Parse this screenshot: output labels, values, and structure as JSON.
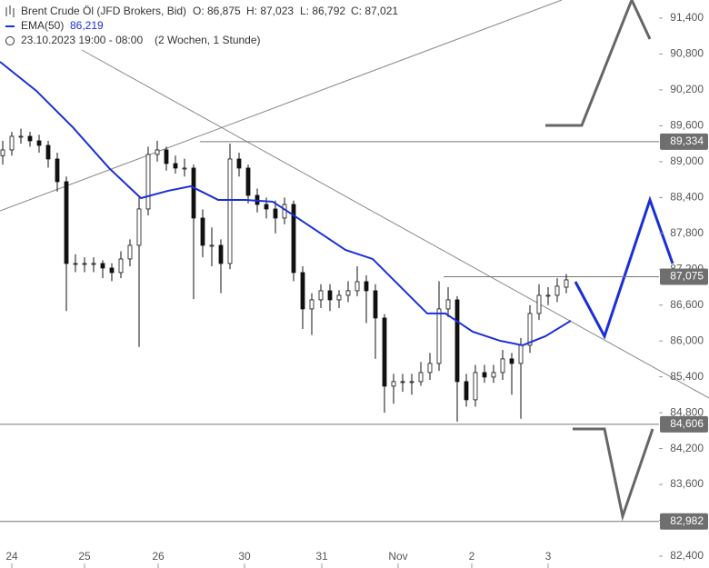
{
  "chart_data": {
    "type": "candlestick",
    "header": {
      "title": "Brent Crude Öl (JFD Brokers, Bid)",
      "open": "O: 86,875",
      "high": "H: 87,023",
      "low": "L: 86,792",
      "close": "C: 87,021",
      "indicator": "EMA(50)",
      "indicator_value": "86,219",
      "period": "23.10.2023 19:00 - 08:00",
      "range": "(2 Wochen, 1 Stunde)"
    },
    "ylim": [
      82202,
      91704
    ],
    "yticks": [
      {
        "value": 91400,
        "label": "91,400"
      },
      {
        "value": 90800,
        "label": "90,800"
      },
      {
        "value": 90200,
        "label": "90,200"
      },
      {
        "value": 89600,
        "label": "89,600"
      },
      {
        "value": 89000,
        "label": "89,000"
      },
      {
        "value": 88400,
        "label": "88,400"
      },
      {
        "value": 87800,
        "label": "87,800"
      },
      {
        "value": 87200,
        "label": "87,200"
      },
      {
        "value": 86600,
        "label": "86,600"
      },
      {
        "value": 86000,
        "label": "86,000"
      },
      {
        "value": 85400,
        "label": "85,400"
      },
      {
        "value": 84800,
        "label": "84,800"
      },
      {
        "value": 84200,
        "label": "84,200"
      },
      {
        "value": 83600,
        "label": "83,600"
      },
      {
        "value": 83000,
        "label": "83,000"
      },
      {
        "value": 82400,
        "label": "82,400"
      }
    ],
    "xlim": [
      -0.3,
      72.2
    ],
    "xticks": [
      {
        "value": 1.0,
        "label": "24"
      },
      {
        "value": 9.0,
        "label": "25"
      },
      {
        "value": 17.1,
        "label": "26"
      },
      {
        "value": 26.6,
        "label": "30"
      },
      {
        "value": 35.1,
        "label": "31"
      },
      {
        "value": 43.5,
        "label": "Nov"
      },
      {
        "value": 51.6,
        "label": "2"
      },
      {
        "value": 60.0,
        "label": "3"
      }
    ],
    "levels": [
      {
        "value": 89334,
        "label": "89,334"
      },
      {
        "value": 87075,
        "label": "87,075"
      },
      {
        "value": 84606,
        "label": "84,606"
      },
      {
        "value": 82982,
        "label": "82,982"
      }
    ],
    "candles": [
      [
        89100,
        89350,
        88950,
        89196
      ],
      [
        89196,
        89500,
        89100,
        89424
      ],
      [
        89424,
        89550,
        89300,
        89424
      ],
      [
        89424,
        89500,
        89250,
        89348
      ],
      [
        89348,
        89450,
        89150,
        89272
      ],
      [
        89272,
        89350,
        88900,
        89044
      ],
      [
        89044,
        89150,
        88500,
        88664
      ],
      [
        88664,
        88750,
        86500,
        87296
      ],
      [
        87296,
        87450,
        87150,
        87296
      ],
      [
        87296,
        87400,
        87150,
        87296
      ],
      [
        87296,
        87400,
        87150,
        87296
      ],
      [
        87296,
        87350,
        87050,
        87220
      ],
      [
        87220,
        87300,
        87000,
        87144
      ],
      [
        87144,
        87500,
        87050,
        87372
      ],
      [
        87372,
        87700,
        87250,
        87600
      ],
      [
        87600,
        88400,
        85900,
        88208
      ],
      [
        88208,
        89250,
        88100,
        89120
      ],
      [
        89120,
        89350,
        89000,
        89196
      ],
      [
        89196,
        89250,
        88850,
        88968
      ],
      [
        88968,
        89100,
        88800,
        88892
      ],
      [
        88892,
        89050,
        88750,
        88892
      ],
      [
        88892,
        88950,
        86700,
        88056
      ],
      [
        88056,
        88200,
        87400,
        87600
      ],
      [
        87600,
        87900,
        87250,
        87600
      ],
      [
        87600,
        87700,
        86800,
        87296
      ],
      [
        87296,
        89300,
        87200,
        89044
      ],
      [
        89044,
        89150,
        88750,
        88892
      ],
      [
        88892,
        88950,
        88300,
        88436
      ],
      [
        88436,
        88550,
        88150,
        88284
      ],
      [
        88284,
        88400,
        88050,
        88208
      ],
      [
        88208,
        88350,
        87800,
        88056
      ],
      [
        88056,
        88400,
        87950,
        88284
      ],
      [
        88284,
        88350,
        87000,
        87144
      ],
      [
        87144,
        87250,
        86200,
        86536
      ],
      [
        86536,
        86800,
        86100,
        86688
      ],
      [
        86688,
        86950,
        86550,
        86840
      ],
      [
        86840,
        86950,
        86500,
        86688
      ],
      [
        86688,
        86850,
        86550,
        86764
      ],
      [
        86764,
        87000,
        86650,
        86840
      ],
      [
        86840,
        87250,
        86750,
        86992
      ],
      [
        86992,
        87100,
        86300,
        86840
      ],
      [
        86840,
        86950,
        85700,
        86384
      ],
      [
        86384,
        86450,
        84800,
        85244
      ],
      [
        85244,
        85450,
        84950,
        85320
      ],
      [
        85320,
        85450,
        85150,
        85320
      ],
      [
        85320,
        85450,
        85100,
        85320
      ],
      [
        85320,
        85650,
        85250,
        85472
      ],
      [
        85472,
        85800,
        85350,
        85624
      ],
      [
        85624,
        87000,
        85500,
        86536
      ],
      [
        86536,
        86900,
        86400,
        86688
      ],
      [
        86688,
        86750,
        84650,
        85320
      ],
      [
        85320,
        85450,
        84900,
        85016
      ],
      [
        85016,
        85600,
        84900,
        85472
      ],
      [
        85472,
        85600,
        85300,
        85396
      ],
      [
        85396,
        85600,
        85300,
        85472
      ],
      [
        85472,
        85850,
        85350,
        85700
      ],
      [
        85700,
        85800,
        85100,
        85624
      ],
      [
        85624,
        86050,
        84700,
        85928
      ],
      [
        85928,
        86600,
        85800,
        86460
      ],
      [
        86460,
        86950,
        86350,
        86764
      ],
      [
        86764,
        86900,
        86600,
        86764
      ],
      [
        86764,
        87050,
        86650,
        86916
      ],
      [
        86900,
        87120,
        86800,
        87022
      ]
    ],
    "series": [
      {
        "name": "EMA(50)",
        "color": "#1a2fd6",
        "x": [
          -0.3,
          3.7,
          7.7,
          11.7,
          15.2,
          18.2,
          20.7,
          23.7,
          26.7,
          29.7,
          31.7,
          34.7,
          37.7,
          40.7,
          43.7,
          46.7,
          48.7,
          51.7,
          54.7,
          57.2,
          59.7,
          62.5
        ],
        "values": [
          90670,
          90184,
          89576,
          88892,
          88390,
          88512,
          88588,
          88360,
          88360,
          88330,
          88132,
          87828,
          87524,
          87372,
          86916,
          86460,
          86460,
          86156,
          86004,
          85928,
          86080,
          86338
        ]
      }
    ]
  }
}
